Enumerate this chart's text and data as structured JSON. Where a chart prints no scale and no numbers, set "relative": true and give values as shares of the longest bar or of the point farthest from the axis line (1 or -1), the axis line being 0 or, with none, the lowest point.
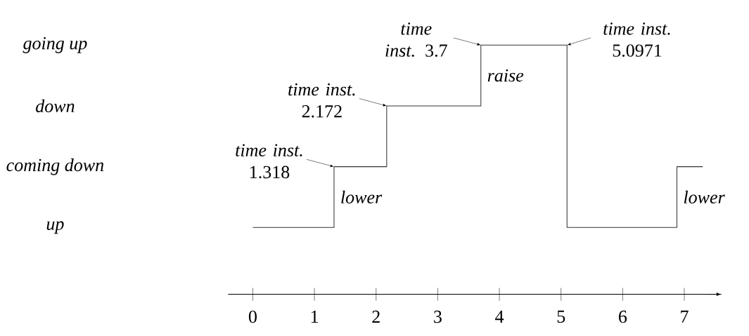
{
  "chart_data": {
    "type": "step",
    "relative": true,
    "x": [
      0,
      1.318,
      2.172,
      3.7,
      5.0971,
      6.88,
      7.3
    ],
    "values": [
      0,
      0.3333,
      0.6667,
      1,
      0,
      0.3333,
      0.3333
    ],
    "color": "#333333",
    "xlim": [
      -0.4,
      7.6
    ],
    "xticks": [
      0,
      1,
      2,
      3,
      4,
      5,
      6,
      7
    ],
    "annotations": [
      "up",
      "coming down",
      "down",
      "going up",
      {
        "text": "*time inst.* 1.318",
        "x": 1.318,
        "y": 0.3333
      },
      {
        "text": "*time inst.* 2.172",
        "x": 2.172,
        "y": 0.6667
      },
      {
        "text": "*time inst.* 3.7",
        "x": 3.7,
        "y": 1
      },
      {
        "text": "*time inst.* 5.0971",
        "x": 5.0971,
        "y": 1
      },
      {
        "text": "*lower*",
        "x": 1.318,
        "y": 0.1667
      },
      {
        "text": "*raise*",
        "x": 3.7,
        "y": 0.8333
      },
      {
        "text": "*lower*",
        "x": 6.88,
        "y": 0.1667
      }
    ]
  }
}
